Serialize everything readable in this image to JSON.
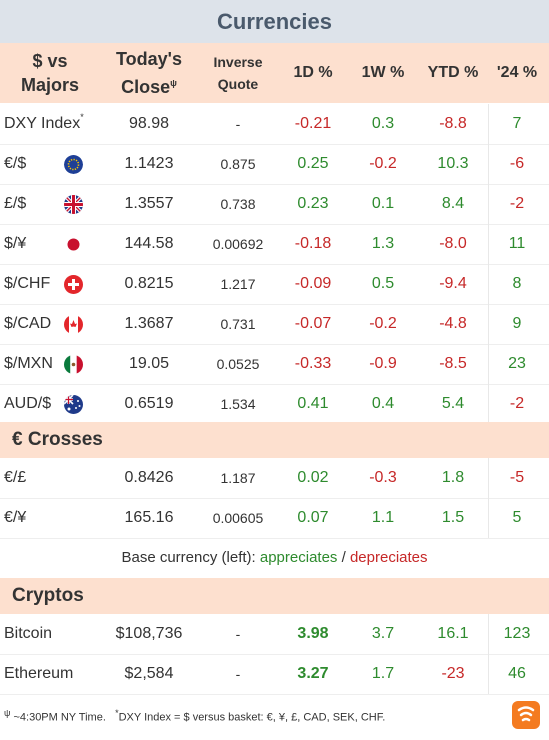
{
  "title": "Currencies",
  "header": {
    "col1_line1": "$ vs",
    "col1_line2": "Majors",
    "close_line1": "Today's",
    "close_line2": "Close",
    "close_sup": "ψ",
    "inv_line1": "Inverse",
    "inv_line2": "Quote",
    "d1": "1D %",
    "w1": "1W %",
    "ytd": "YTD %",
    "y24": "'24 %"
  },
  "majors": [
    {
      "name": "DXY Index",
      "sup": "*",
      "close": "98.98",
      "inv": "-",
      "d1": "-0.21",
      "w1": "0.3",
      "ytd": "-8.8",
      "y24": "7"
    },
    {
      "name": "€/$",
      "flag": "eu-flag-icon",
      "close": "1.1423",
      "inv": "0.875",
      "d1": "0.25",
      "w1": "-0.2",
      "ytd": "10.3",
      "y24": "-6"
    },
    {
      "name": "£/$",
      "flag": "uk-flag-icon",
      "close": "1.3557",
      "inv": "0.738",
      "d1": "0.23",
      "w1": "0.1",
      "ytd": "8.4",
      "y24": "-2"
    },
    {
      "name": "$/¥",
      "flag": "japan-flag-icon",
      "close": "144.58",
      "inv": "0.00692",
      "d1": "-0.18",
      "w1": "1.3",
      "ytd": "-8.0",
      "y24": "11"
    },
    {
      "name": "$/CHF",
      "flag": "swiss-flag-icon",
      "close": "0.8215",
      "inv": "1.217",
      "d1": "-0.09",
      "w1": "0.5",
      "ytd": "-9.4",
      "y24": "8"
    },
    {
      "name": "$/CAD",
      "flag": "canada-flag-icon",
      "close": "1.3687",
      "inv": "0.731",
      "d1": "-0.07",
      "w1": "-0.2",
      "ytd": "-4.8",
      "y24": "9"
    },
    {
      "name": "$/MXN",
      "flag": "mexico-flag-icon",
      "close": "19.05",
      "inv": "0.0525",
      "d1": "-0.33",
      "w1": "-0.9",
      "ytd": "-8.5",
      "y24": "23"
    },
    {
      "name": "AUD/$",
      "flag": "australia-flag-icon",
      "close": "0.6519",
      "inv": "1.534",
      "d1": "0.41",
      "w1": "0.4",
      "ytd": "5.4",
      "y24": "-2"
    }
  ],
  "crosses_title": "€ Crosses",
  "crosses": [
    {
      "name": "€/£",
      "close": "0.8426",
      "inv": "1.187",
      "d1": "0.02",
      "w1": "-0.3",
      "ytd": "1.8",
      "y24": "-5"
    },
    {
      "name": "€/¥",
      "close": "165.16",
      "inv": "0.00605",
      "d1": "0.07",
      "w1": "1.1",
      "ytd": "1.5",
      "y24": "5"
    }
  ],
  "legend": {
    "prefix": "Base currency (left): ",
    "up": "appreciates",
    "sep": " / ",
    "down": "depreciates"
  },
  "cryptos_title": "Cryptos",
  "cryptos": [
    {
      "name": "Bitcoin",
      "close": "$108,736",
      "inv": "-",
      "d1": "3.98",
      "w1": "3.7",
      "ytd": "16.1",
      "y24": "123"
    },
    {
      "name": "Ethereum",
      "close": "$2,584",
      "inv": "-",
      "d1": "3.27",
      "w1": "1.7",
      "ytd": "-23",
      "y24": "46"
    }
  ],
  "footer": {
    "sym1": "ψ",
    "note1": " ~4:30PM NY Time.",
    "sym2": "*",
    "note2": "DXY Index = $ versus basket: €, ¥, £, CAD, SEK, CHF."
  },
  "colors": {
    "positive": "#2e8b2e",
    "negative": "#c62828",
    "header_bg": "#fde0cf",
    "title_bg": "#dde3ea"
  }
}
